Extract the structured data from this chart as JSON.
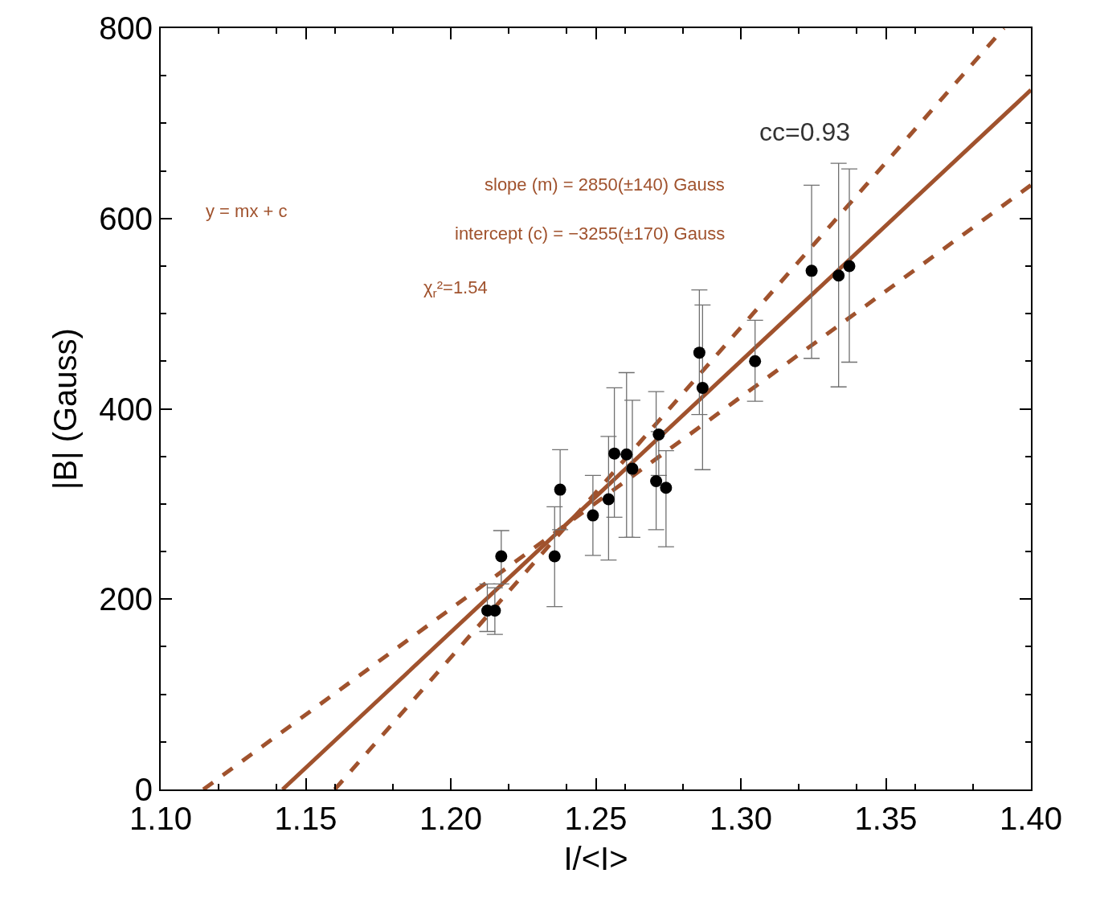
{
  "chart_data": {
    "type": "scatter",
    "xlabel": "I/<I>",
    "ylabel": "|B| (Gauss)",
    "xlim": [
      1.1,
      1.4
    ],
    "xticks": [
      {
        "value": 1.1,
        "label": "1.10"
      },
      {
        "value": 1.15,
        "label": "1.15"
      },
      {
        "value": 1.2,
        "label": "1.20"
      },
      {
        "value": 1.25,
        "label": "1.25"
      },
      {
        "value": 1.3,
        "label": "1.30"
      },
      {
        "value": 1.35,
        "label": "1.35"
      },
      {
        "value": 1.4,
        "label": "1.40"
      }
    ],
    "ylim": [
      0,
      800
    ],
    "yticks": [
      0,
      200,
      400,
      600,
      800
    ],
    "annotations": [
      "cc=0.93",
      "slope (m) = 2850(±140) Gauss",
      "y = mx + c",
      "intercept (c) = −3255(±170) Gauss",
      "χ$_{r}$²=1.54"
    ],
    "series": [
      {
        "type": "line",
        "color": "#a0522d",
        "line_style": "solid",
        "marker": "none",
        "x": [
          1.142,
          1.4
        ],
        "values": [
          0,
          735
        ]
      },
      {
        "type": "line",
        "color": "#a0522d",
        "line_style": "dashed",
        "marker": "none",
        "x": [
          1.16,
          1.3907
        ],
        "values": [
          0,
          800
        ]
      },
      {
        "type": "line",
        "color": "#a0522d",
        "line_style": "dashed",
        "marker": "none",
        "x": [
          1.1147,
          1.4
        ],
        "values": [
          0,
          635
        ]
      },
      {
        "color": "#000000",
        "marker": "circle",
        "x": [
          1.2126,
          1.2152,
          1.2174,
          1.2358,
          1.2377,
          1.249,
          1.2544,
          1.2564,
          1.2606,
          1.2626,
          1.2708,
          1.2717,
          1.2742,
          1.2857,
          1.2868,
          1.3049,
          1.3244,
          1.3337,
          1.3374
        ],
        "values": [
          188,
          188,
          245,
          245,
          315,
          288,
          305,
          353,
          352,
          337,
          324,
          373,
          317,
          459,
          422,
          450,
          545,
          540,
          550
        ],
        "errors": [
          [
            166,
            216
          ],
          [
            163,
            212
          ],
          [
            216,
            272
          ],
          [
            192,
            297
          ],
          [
            273,
            357
          ],
          [
            246,
            330
          ],
          [
            241,
            371
          ],
          [
            286,
            422
          ],
          [
            265,
            438
          ],
          [
            265,
            409
          ],
          [
            273,
            418
          ],
          [
            330,
            376
          ],
          [
            255,
            356
          ],
          [
            394,
            525
          ],
          [
            336,
            509
          ],
          [
            408,
            493
          ],
          [
            453,
            635
          ],
          [
            423,
            658
          ],
          [
            449,
            652
          ]
        ]
      }
    ]
  }
}
